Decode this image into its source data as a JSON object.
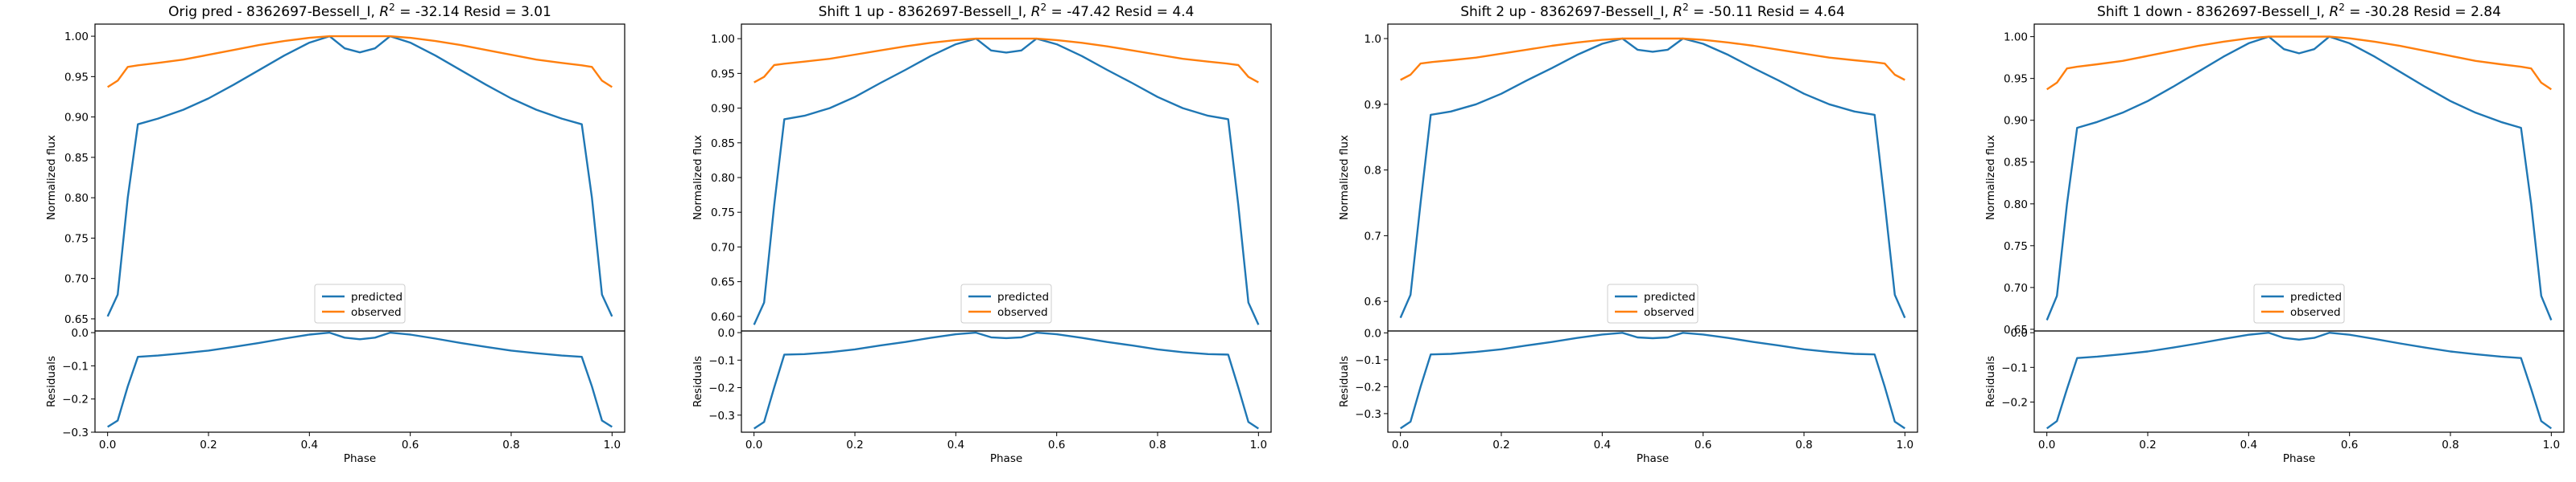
{
  "colors": {
    "predicted": "#1f77b4",
    "observed": "#ff7f0e"
  },
  "legend": {
    "position": "lower center",
    "entries": [
      "predicted",
      "observed"
    ]
  },
  "chart_data": [
    {
      "type": "line",
      "title": "Orig pred - 8362697-Bessell_I, $R^2$ = -32.14 Resid = 3.01",
      "title_parts": [
        "Orig pred - 8362697-Bessell_I, ",
        "R",
        "2",
        " = -32.14 Resid = 3.01"
      ],
      "ylabel": "Normalized flux",
      "xlabel": "Phase",
      "resid_ylabel": "Residuals",
      "xlim": [
        -0.025,
        1.025
      ],
      "xticks": [
        0.0,
        0.2,
        0.4,
        0.6,
        0.8,
        1.0
      ],
      "xtick_labels": [
        "0.0",
        "0.2",
        "0.4",
        "0.6",
        "0.8",
        "1.0"
      ],
      "ylim": [
        0.635,
        1.015
      ],
      "yticks": [
        0.65,
        0.7,
        0.75,
        0.8,
        0.85,
        0.9,
        0.95,
        1.0
      ],
      "ytick_labels": [
        "0.65",
        "0.70",
        "0.75",
        "0.80",
        "0.85",
        "0.90",
        "0.95",
        "1.00"
      ],
      "resid_ylim": [
        -0.3,
        0.005
      ],
      "resid_yticks": [
        0.0,
        -0.1,
        -0.2,
        -0.3
      ],
      "resid_ytick_labels": [
        "0.0",
        "−0.1",
        "−0.2",
        "−0.3"
      ],
      "x": [
        0.0,
        0.02,
        0.04,
        0.06,
        0.1,
        0.15,
        0.2,
        0.25,
        0.3,
        0.35,
        0.4,
        0.44,
        0.47,
        0.5,
        0.53,
        0.56,
        0.6,
        0.65,
        0.7,
        0.75,
        0.8,
        0.85,
        0.9,
        0.94,
        0.96,
        0.98,
        1.0
      ],
      "series": [
        {
          "name": "predicted",
          "values": [
            0.653,
            0.68,
            0.8,
            0.891,
            0.898,
            0.909,
            0.923,
            0.94,
            0.958,
            0.976,
            0.992,
            1.0,
            0.985,
            0.98,
            0.985,
            1.0,
            0.992,
            0.976,
            0.958,
            0.94,
            0.923,
            0.909,
            0.898,
            0.891,
            0.8,
            0.68,
            0.653
          ]
        },
        {
          "name": "observed",
          "values": [
            0.937,
            0.945,
            0.962,
            0.964,
            0.967,
            0.971,
            0.977,
            0.983,
            0.989,
            0.994,
            0.998,
            1.0,
            1.0,
            1.0,
            1.0,
            1.0,
            0.998,
            0.994,
            0.989,
            0.983,
            0.977,
            0.971,
            0.967,
            0.964,
            0.962,
            0.945,
            0.937
          ]
        }
      ],
      "residuals": [
        -0.284,
        -0.265,
        -0.162,
        -0.073,
        -0.069,
        -0.062,
        -0.054,
        -0.043,
        -0.031,
        -0.018,
        -0.006,
        0.0,
        -0.015,
        -0.02,
        -0.015,
        0.0,
        -0.006,
        -0.018,
        -0.031,
        -0.043,
        -0.054,
        -0.062,
        -0.069,
        -0.073,
        -0.162,
        -0.265,
        -0.284
      ]
    },
    {
      "type": "line",
      "title": "Shift 1 up - 8362697-Bessell_I, $R^2$ = -47.42 Resid = 4.4",
      "title_parts": [
        "Shift 1 up - 8362697-Bessell_I, ",
        "R",
        "2",
        " = -47.42 Resid = 4.4"
      ],
      "ylabel": "Normalized flux",
      "xlabel": "Phase",
      "resid_ylabel": "Residuals",
      "xlim": [
        -0.025,
        1.025
      ],
      "xticks": [
        0.0,
        0.2,
        0.4,
        0.6,
        0.8,
        1.0
      ],
      "xtick_labels": [
        "0.0",
        "0.2",
        "0.4",
        "0.6",
        "0.8",
        "1.0"
      ],
      "ylim": [
        0.579,
        1.021
      ],
      "yticks": [
        0.6,
        0.65,
        0.7,
        0.75,
        0.8,
        0.85,
        0.9,
        0.95,
        1.0
      ],
      "ytick_labels": [
        "0.60",
        "0.65",
        "0.70",
        "0.75",
        "0.80",
        "0.85",
        "0.90",
        "0.95",
        "1.00"
      ],
      "resid_ylim": [
        -0.362,
        0.006
      ],
      "resid_yticks": [
        0.0,
        -0.1,
        -0.2,
        -0.3
      ],
      "resid_ytick_labels": [
        "0.0",
        "−0.1",
        "−0.2",
        "−0.3"
      ],
      "x": [
        0.0,
        0.02,
        0.04,
        0.06,
        0.1,
        0.15,
        0.2,
        0.25,
        0.3,
        0.35,
        0.4,
        0.44,
        0.47,
        0.5,
        0.53,
        0.56,
        0.6,
        0.65,
        0.7,
        0.75,
        0.8,
        0.85,
        0.9,
        0.94,
        0.96,
        0.98,
        1.0
      ],
      "series": [
        {
          "name": "predicted",
          "values": [
            0.588,
            0.62,
            0.76,
            0.884,
            0.889,
            0.9,
            0.916,
            0.936,
            0.955,
            0.975,
            0.992,
            1.0,
            0.983,
            0.98,
            0.983,
            1.0,
            0.992,
            0.975,
            0.955,
            0.936,
            0.916,
            0.9,
            0.889,
            0.884,
            0.76,
            0.62,
            0.588
          ]
        },
        {
          "name": "observed",
          "values": [
            0.937,
            0.945,
            0.962,
            0.964,
            0.967,
            0.971,
            0.977,
            0.983,
            0.989,
            0.994,
            0.998,
            1.0,
            1.0,
            1.0,
            1.0,
            1.0,
            0.998,
            0.994,
            0.989,
            0.983,
            0.977,
            0.971,
            0.967,
            0.964,
            0.962,
            0.945,
            0.937
          ]
        }
      ],
      "residuals": [
        -0.349,
        -0.325,
        -0.2,
        -0.08,
        -0.078,
        -0.071,
        -0.061,
        -0.047,
        -0.034,
        -0.019,
        -0.006,
        0.0,
        -0.017,
        -0.02,
        -0.017,
        0.0,
        -0.006,
        -0.019,
        -0.034,
        -0.047,
        -0.061,
        -0.071,
        -0.078,
        -0.08,
        -0.2,
        -0.325,
        -0.349
      ]
    },
    {
      "type": "line",
      "title": "Shift 2 up - 8362697-Bessell_I, $R^2$ = -50.11 Resid = 4.64",
      "title_parts": [
        "Shift 2 up - 8362697-Bessell_I, ",
        "R",
        "2",
        " = -50.11 Resid = 4.64"
      ],
      "ylabel": "Normalized flux",
      "xlabel": "Phase",
      "resid_ylabel": "Residuals",
      "xlim": [
        -0.025,
        1.025
      ],
      "xticks": [
        0.0,
        0.2,
        0.4,
        0.6,
        0.8,
        1.0
      ],
      "xtick_labels": [
        "0.0",
        "0.2",
        "0.4",
        "0.6",
        "0.8",
        "1.0"
      ],
      "ylim": [
        0.555,
        1.022
      ],
      "yticks": [
        0.6,
        0.7,
        0.8,
        0.9,
        1.0
      ],
      "ytick_labels": [
        "0.6",
        "0.7",
        "0.8",
        "0.9",
        "1.0"
      ],
      "resid_ylim": [
        -0.369,
        0.007
      ],
      "resid_yticks": [
        0.0,
        -0.1,
        -0.2,
        -0.3
      ],
      "resid_ytick_labels": [
        "0.0",
        "−0.1",
        "−0.2",
        "−0.3"
      ],
      "x": [
        0.0,
        0.02,
        0.04,
        0.06,
        0.1,
        0.15,
        0.2,
        0.25,
        0.3,
        0.35,
        0.4,
        0.44,
        0.47,
        0.5,
        0.53,
        0.56,
        0.6,
        0.65,
        0.7,
        0.75,
        0.8,
        0.85,
        0.9,
        0.94,
        0.96,
        0.98,
        1.0
      ],
      "series": [
        {
          "name": "predicted",
          "values": [
            0.575,
            0.61,
            0.75,
            0.884,
            0.889,
            0.9,
            0.916,
            0.936,
            0.955,
            0.975,
            0.992,
            1.0,
            0.983,
            0.98,
            0.983,
            1.0,
            0.992,
            0.975,
            0.955,
            0.936,
            0.916,
            0.9,
            0.889,
            0.884,
            0.75,
            0.61,
            0.575
          ]
        },
        {
          "name": "observed",
          "values": [
            0.937,
            0.945,
            0.962,
            0.964,
            0.967,
            0.971,
            0.977,
            0.983,
            0.989,
            0.994,
            0.998,
            1.0,
            1.0,
            1.0,
            1.0,
            1.0,
            0.998,
            0.994,
            0.989,
            0.983,
            0.977,
            0.971,
            0.967,
            0.964,
            0.962,
            0.945,
            0.937
          ]
        }
      ],
      "residuals": [
        -0.355,
        -0.33,
        -0.2,
        -0.08,
        -0.078,
        -0.071,
        -0.061,
        -0.047,
        -0.034,
        -0.019,
        -0.006,
        0.0,
        -0.017,
        -0.02,
        -0.017,
        0.0,
        -0.006,
        -0.019,
        -0.034,
        -0.047,
        -0.061,
        -0.071,
        -0.078,
        -0.08,
        -0.2,
        -0.33,
        -0.355
      ]
    },
    {
      "type": "line",
      "title": "Shift 1 down - 8362697-Bessell_I, $R^2$ = -30.28 Resid = 2.84",
      "title_parts": [
        "Shift 1 down - 8362697-Bessell_I, ",
        "R",
        "2",
        " = -30.28 Resid = 2.84"
      ],
      "ylabel": "Normalized flux",
      "xlabel": "Phase",
      "resid_ylabel": "Residuals",
      "xlim": [
        -0.025,
        1.025
      ],
      "xticks": [
        0.0,
        0.2,
        0.4,
        0.6,
        0.8,
        1.0
      ],
      "xtick_labels": [
        "0.0",
        "0.2",
        "0.4",
        "0.6",
        "0.8",
        "1.0"
      ],
      "ylim": [
        0.648,
        1.015
      ],
      "yticks": [
        0.65,
        0.7,
        0.75,
        0.8,
        0.85,
        0.9,
        0.95,
        1.0
      ],
      "ytick_labels": [
        "0.65",
        "0.70",
        "0.75",
        "0.80",
        "0.85",
        "0.90",
        "0.95",
        "1.00"
      ],
      "resid_ylim": [
        -0.287,
        0.005
      ],
      "resid_yticks": [
        0.0,
        -0.1,
        -0.2
      ],
      "resid_ytick_labels": [
        "0.0",
        "−0.1",
        "−0.2"
      ],
      "x": [
        0.0,
        0.02,
        0.04,
        0.06,
        0.1,
        0.15,
        0.2,
        0.25,
        0.3,
        0.35,
        0.4,
        0.44,
        0.47,
        0.5,
        0.53,
        0.56,
        0.6,
        0.65,
        0.7,
        0.75,
        0.8,
        0.85,
        0.9,
        0.94,
        0.96,
        0.98,
        1.0
      ],
      "series": [
        {
          "name": "predicted",
          "values": [
            0.661,
            0.69,
            0.8,
            0.891,
            0.898,
            0.909,
            0.923,
            0.94,
            0.958,
            0.976,
            0.992,
            1.0,
            0.985,
            0.98,
            0.985,
            1.0,
            0.992,
            0.976,
            0.958,
            0.94,
            0.923,
            0.909,
            0.898,
            0.891,
            0.8,
            0.69,
            0.661
          ]
        },
        {
          "name": "observed",
          "values": [
            0.937,
            0.945,
            0.962,
            0.964,
            0.967,
            0.971,
            0.977,
            0.983,
            0.989,
            0.994,
            0.998,
            1.0,
            1.0,
            1.0,
            1.0,
            1.0,
            0.998,
            0.994,
            0.989,
            0.983,
            0.977,
            0.971,
            0.967,
            0.964,
            0.962,
            0.945,
            0.937
          ]
        }
      ],
      "residuals": [
        -0.276,
        -0.255,
        -0.162,
        -0.073,
        -0.069,
        -0.062,
        -0.054,
        -0.043,
        -0.031,
        -0.018,
        -0.006,
        0.0,
        -0.015,
        -0.02,
        -0.015,
        0.0,
        -0.006,
        -0.018,
        -0.031,
        -0.043,
        -0.054,
        -0.062,
        -0.069,
        -0.073,
        -0.162,
        -0.255,
        -0.276
      ]
    }
  ]
}
